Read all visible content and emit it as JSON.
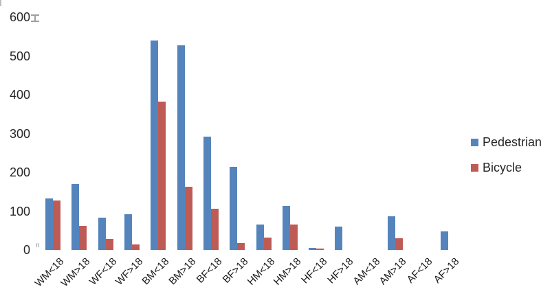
{
  "chart_data": {
    "type": "bar",
    "title": "",
    "xlabel": "",
    "ylabel": "",
    "categories": [
      "WM<18",
      "WM>18",
      "WF<18",
      "WF>18",
      "BM<18",
      "BM>18",
      "BF<18",
      "BF>18",
      "HM<18",
      "HM>18",
      "HF<18",
      "HF>18",
      "AM<18",
      "AM>18",
      "AF<18",
      "AF>18"
    ],
    "series": [
      {
        "name": "Pedestrian",
        "color": "#5584bc",
        "values": [
          133,
          170,
          83,
          92,
          540,
          528,
          292,
          214,
          66,
          113,
          6,
          60,
          0,
          87,
          0,
          47
        ]
      },
      {
        "name": "Bicycle",
        "color": "#bf5b55",
        "values": [
          128,
          62,
          28,
          15,
          382,
          162,
          107,
          18,
          32,
          65,
          3,
          0,
          0,
          30,
          0,
          0
        ]
      }
    ],
    "ylim": [
      0,
      600
    ],
    "yticks": [
      0,
      100,
      200,
      300,
      400,
      500,
      600
    ],
    "grid": false,
    "legend_position": "right"
  },
  "legend": {
    "items": [
      {
        "label": "Pedestrian",
        "color": "#5584bc"
      },
      {
        "label": "Bicycle",
        "color": "#bf5b55"
      }
    ]
  },
  "axis": {
    "y_tick_labels": [
      "0",
      "100",
      "200",
      "300",
      "400",
      "500",
      "600"
    ]
  },
  "artifacts": {
    "n_mark": "n"
  }
}
